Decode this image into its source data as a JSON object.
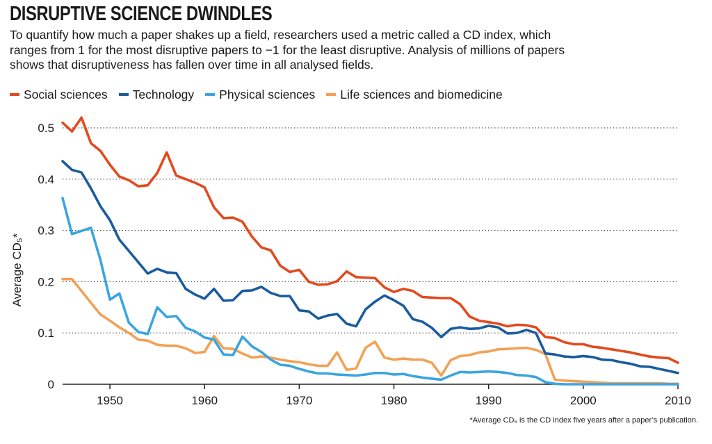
{
  "title": "DISRUPTIVE SCIENCE DWINDLES",
  "subtitle": "To quantify how much a paper shakes up a field, researchers used a metric called a CD index, which ranges from 1 for the most disruptive papers to −1 for the least disruptive. Analysis of millions of papers shows that disruptiveness has fallen over time in all analysed fields.",
  "footnote": "*Average CD₅ is the CD index five years after a paper’s publication.",
  "chart_data": {
    "type": "line",
    "ylabel": "Average CD₅*",
    "xlabel": "",
    "xlim": [
      1945,
      2010
    ],
    "ylim": [
      0,
      0.5
    ],
    "xticks": [
      1950,
      1960,
      1970,
      1980,
      1990,
      2000,
      2010
    ],
    "yticks": [
      0,
      0.1,
      0.2,
      0.3,
      0.4,
      0.5
    ],
    "ytick_labels": [
      "0",
      "0.1",
      "0.2",
      "0.3",
      "0.4",
      "0.5"
    ],
    "grid": "horizontal dotted",
    "legend_position": "top",
    "x": [
      1945,
      1946,
      1947,
      1948,
      1949,
      1950,
      1951,
      1952,
      1953,
      1954,
      1955,
      1956,
      1957,
      1958,
      1959,
      1960,
      1961,
      1962,
      1963,
      1964,
      1965,
      1966,
      1967,
      1968,
      1969,
      1970,
      1971,
      1972,
      1973,
      1974,
      1975,
      1976,
      1977,
      1978,
      1979,
      1980,
      1981,
      1982,
      1983,
      1984,
      1985,
      1986,
      1987,
      1988,
      1989,
      1990,
      1991,
      1992,
      1993,
      1994,
      1995,
      1996,
      1997,
      1998,
      1999,
      2000,
      2001,
      2002,
      2003,
      2004,
      2005,
      2006,
      2007,
      2008,
      2009,
      2010
    ],
    "series": [
      {
        "name": "Social sciences",
        "color": "#e34a1e",
        "values": [
          0.51,
          0.493,
          0.52,
          0.47,
          0.455,
          0.428,
          0.405,
          0.398,
          0.386,
          0.388,
          0.412,
          0.452,
          0.407,
          0.4,
          0.393,
          0.384,
          0.345,
          0.324,
          0.325,
          0.317,
          0.288,
          0.267,
          0.261,
          0.231,
          0.219,
          0.223,
          0.2,
          0.194,
          0.195,
          0.201,
          0.22,
          0.209,
          0.208,
          0.207,
          0.189,
          0.18,
          0.186,
          0.182,
          0.17,
          0.169,
          0.168,
          0.168,
          0.156,
          0.132,
          0.124,
          0.121,
          0.118,
          0.113,
          0.116,
          0.115,
          0.111,
          0.092,
          0.09,
          0.082,
          0.078,
          0.078,
          0.073,
          0.071,
          0.068,
          0.065,
          0.062,
          0.058,
          0.054,
          0.052,
          0.051,
          0.042
        ]
      },
      {
        "name": "Technology",
        "color": "#1a5c9e",
        "values": [
          0.435,
          0.418,
          0.413,
          0.382,
          0.347,
          0.32,
          0.282,
          0.26,
          0.238,
          0.216,
          0.225,
          0.218,
          0.217,
          0.186,
          0.175,
          0.167,
          0.186,
          0.163,
          0.164,
          0.182,
          0.183,
          0.19,
          0.178,
          0.172,
          0.172,
          0.144,
          0.142,
          0.128,
          0.134,
          0.137,
          0.118,
          0.113,
          0.146,
          0.161,
          0.173,
          0.164,
          0.153,
          0.127,
          0.122,
          0.11,
          0.092,
          0.108,
          0.111,
          0.108,
          0.109,
          0.114,
          0.111,
          0.099,
          0.1,
          0.106,
          0.1,
          0.06,
          0.058,
          0.054,
          0.053,
          0.055,
          0.053,
          0.048,
          0.047,
          0.043,
          0.04,
          0.035,
          0.034,
          0.03,
          0.026,
          0.022
        ]
      },
      {
        "name": "Physical sciences",
        "color": "#3aa5e0",
        "values": [
          0.363,
          0.293,
          0.299,
          0.305,
          0.242,
          0.165,
          0.177,
          0.12,
          0.102,
          0.098,
          0.15,
          0.131,
          0.133,
          0.11,
          0.103,
          0.091,
          0.087,
          0.058,
          0.057,
          0.093,
          0.074,
          0.063,
          0.048,
          0.038,
          0.036,
          0.03,
          0.025,
          0.021,
          0.021,
          0.019,
          0.018,
          0.017,
          0.019,
          0.022,
          0.022,
          0.019,
          0.02,
          0.016,
          0.013,
          0.011,
          0.009,
          0.017,
          0.024,
          0.023,
          0.024,
          0.025,
          0.024,
          0.022,
          0.018,
          0.017,
          0.014,
          0.004,
          0.001,
          0.0,
          0.0,
          0.0,
          0.0,
          0.0,
          0.0,
          0.0,
          0.0,
          0.0,
          0.0,
          0.0,
          0.0,
          0.0
        ]
      },
      {
        "name": "Life sciences and biomedicine",
        "color": "#f2a155",
        "values": [
          0.205,
          0.205,
          0.182,
          0.159,
          0.136,
          0.124,
          0.111,
          0.1,
          0.087,
          0.085,
          0.077,
          0.075,
          0.075,
          0.07,
          0.061,
          0.063,
          0.094,
          0.07,
          0.069,
          0.06,
          0.052,
          0.054,
          0.052,
          0.048,
          0.045,
          0.043,
          0.039,
          0.036,
          0.036,
          0.062,
          0.028,
          0.031,
          0.071,
          0.083,
          0.052,
          0.048,
          0.05,
          0.048,
          0.048,
          0.042,
          0.017,
          0.047,
          0.055,
          0.057,
          0.062,
          0.064,
          0.068,
          0.069,
          0.07,
          0.071,
          0.067,
          0.059,
          0.009,
          0.007,
          0.006,
          0.005,
          0.004,
          0.003,
          0.002,
          0.002,
          0.002,
          0.002,
          0.002,
          0.002,
          0.001,
          0.001
        ]
      }
    ]
  }
}
